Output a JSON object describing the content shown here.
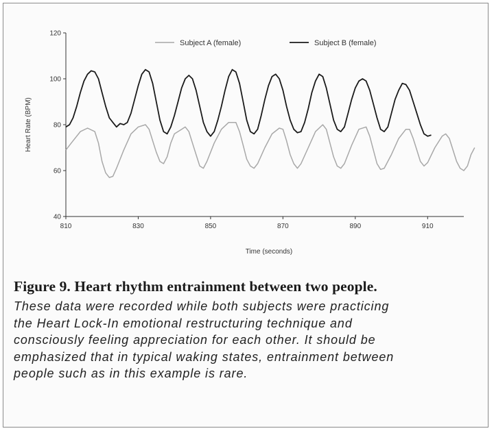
{
  "chart_data": {
    "type": "line",
    "xlabel": "Time (seconds)",
    "ylabel": "Heart Rate (BPM)",
    "xlim": [
      810,
      920
    ],
    "ylim": [
      40,
      120
    ],
    "x_ticks": [
      810,
      830,
      850,
      870,
      890,
      910
    ],
    "y_ticks": [
      40,
      60,
      80,
      100,
      120
    ],
    "grid": false,
    "legend_position": "top",
    "series": [
      {
        "name": "Subject A (female)",
        "color": "#a8a8a8",
        "points": [
          [
            810,
            69
          ],
          [
            812,
            73
          ],
          [
            814,
            77
          ],
          [
            816,
            78.5
          ],
          [
            818,
            77
          ],
          [
            819,
            72
          ],
          [
            820,
            64
          ],
          [
            821,
            59
          ],
          [
            822,
            57
          ],
          [
            823,
            57.5
          ],
          [
            824,
            61
          ],
          [
            826,
            69
          ],
          [
            828,
            76
          ],
          [
            830,
            79
          ],
          [
            832,
            80
          ],
          [
            833,
            78
          ],
          [
            834,
            73
          ],
          [
            835,
            68
          ],
          [
            836,
            64
          ],
          [
            837,
            63
          ],
          [
            838,
            66
          ],
          [
            839,
            72
          ],
          [
            840,
            76
          ],
          [
            842,
            78
          ],
          [
            843,
            79
          ],
          [
            844,
            77
          ],
          [
            845,
            72
          ],
          [
            846,
            67
          ],
          [
            847,
            62
          ],
          [
            848,
            61
          ],
          [
            849,
            64
          ],
          [
            851,
            72
          ],
          [
            853,
            78
          ],
          [
            855,
            81
          ],
          [
            857,
            81
          ],
          [
            858,
            77
          ],
          [
            859,
            71
          ],
          [
            860,
            65
          ],
          [
            861,
            62
          ],
          [
            862,
            61
          ],
          [
            863,
            63
          ],
          [
            865,
            70
          ],
          [
            867,
            76
          ],
          [
            869,
            78.5
          ],
          [
            870,
            78
          ],
          [
            871,
            73
          ],
          [
            872,
            67
          ],
          [
            873,
            63
          ],
          [
            874,
            61
          ],
          [
            875,
            63
          ],
          [
            877,
            70
          ],
          [
            879,
            77
          ],
          [
            881,
            80
          ],
          [
            882,
            78
          ],
          [
            883,
            72
          ],
          [
            884,
            66
          ],
          [
            885,
            62
          ],
          [
            886,
            61
          ],
          [
            887,
            63
          ],
          [
            889,
            71
          ],
          [
            891,
            78
          ],
          [
            893,
            79
          ],
          [
            894,
            75
          ],
          [
            895,
            69
          ],
          [
            896,
            63
          ],
          [
            897,
            60.5
          ],
          [
            898,
            61
          ],
          [
            900,
            67
          ],
          [
            902,
            74
          ],
          [
            904,
            78
          ],
          [
            905,
            78
          ],
          [
            906,
            74
          ],
          [
            907,
            69
          ],
          [
            908,
            64
          ],
          [
            909,
            62
          ],
          [
            910,
            63.5
          ],
          [
            912,
            70
          ],
          [
            914,
            75
          ],
          [
            915,
            76
          ],
          [
            916,
            74
          ],
          [
            917,
            69
          ],
          [
            918,
            64
          ],
          [
            919,
            61
          ],
          [
            920,
            60
          ],
          [
            921,
            62
          ],
          [
            922,
            67
          ],
          [
            923,
            70
          ]
        ]
      },
      {
        "name": "Subject B (female)",
        "color": "#1a1a1a",
        "points": [
          [
            810,
            79
          ],
          [
            811,
            80
          ],
          [
            812,
            83
          ],
          [
            813,
            88
          ],
          [
            814,
            94
          ],
          [
            815,
            99
          ],
          [
            816,
            102
          ],
          [
            817,
            103.5
          ],
          [
            818,
            103
          ],
          [
            819,
            100
          ],
          [
            820,
            94
          ],
          [
            821,
            88
          ],
          [
            822,
            83
          ],
          [
            823,
            81
          ],
          [
            824,
            79
          ],
          [
            825,
            80.5
          ],
          [
            826,
            80
          ],
          [
            827,
            81
          ],
          [
            828,
            85
          ],
          [
            829,
            91
          ],
          [
            830,
            97
          ],
          [
            831,
            102
          ],
          [
            832,
            104
          ],
          [
            833,
            103
          ],
          [
            834,
            98
          ],
          [
            835,
            90
          ],
          [
            836,
            82
          ],
          [
            837,
            77
          ],
          [
            838,
            76
          ],
          [
            839,
            79
          ],
          [
            840,
            84
          ],
          [
            841,
            90
          ],
          [
            842,
            96
          ],
          [
            843,
            100
          ],
          [
            844,
            101.5
          ],
          [
            845,
            100
          ],
          [
            846,
            95
          ],
          [
            847,
            88
          ],
          [
            848,
            81
          ],
          [
            849,
            77
          ],
          [
            850,
            75
          ],
          [
            851,
            77
          ],
          [
            852,
            82
          ],
          [
            853,
            88
          ],
          [
            854,
            95
          ],
          [
            855,
            101
          ],
          [
            856,
            104
          ],
          [
            857,
            103
          ],
          [
            858,
            98
          ],
          [
            859,
            90
          ],
          [
            860,
            82
          ],
          [
            861,
            77
          ],
          [
            862,
            76
          ],
          [
            863,
            78
          ],
          [
            864,
            84
          ],
          [
            865,
            91
          ],
          [
            866,
            97
          ],
          [
            867,
            101
          ],
          [
            868,
            102
          ],
          [
            869,
            100
          ],
          [
            870,
            95
          ],
          [
            871,
            88
          ],
          [
            872,
            82
          ],
          [
            873,
            78
          ],
          [
            874,
            76.5
          ],
          [
            875,
            77
          ],
          [
            876,
            81
          ],
          [
            877,
            87
          ],
          [
            878,
            94
          ],
          [
            879,
            99
          ],
          [
            880,
            102
          ],
          [
            881,
            101
          ],
          [
            882,
            96
          ],
          [
            883,
            89
          ],
          [
            884,
            82
          ],
          [
            885,
            78
          ],
          [
            886,
            77
          ],
          [
            887,
            79
          ],
          [
            888,
            85
          ],
          [
            889,
            91
          ],
          [
            890,
            96
          ],
          [
            891,
            99
          ],
          [
            892,
            100
          ],
          [
            893,
            99
          ],
          [
            894,
            95
          ],
          [
            895,
            89
          ],
          [
            896,
            83
          ],
          [
            897,
            78
          ],
          [
            898,
            77
          ],
          [
            899,
            79
          ],
          [
            900,
            85
          ],
          [
            901,
            91
          ],
          [
            902,
            95
          ],
          [
            903,
            98
          ],
          [
            904,
            97.5
          ],
          [
            905,
            95
          ],
          [
            906,
            90
          ],
          [
            907,
            85
          ],
          [
            908,
            80
          ],
          [
            909,
            76
          ],
          [
            910,
            75
          ],
          [
            911,
            75.5
          ]
        ]
      }
    ]
  },
  "caption": {
    "title": "Figure 9. Heart rhythm entrainment between two people.",
    "lines": [
      "These data were recorded while both subjects were practicing",
      "the Heart Lock-In emotional restructuring technique and",
      "consciously feeling appreciation for each other. It should be",
      "emphasized that in typical waking states, entrainment between",
      "people such as in this example is rare."
    ]
  }
}
